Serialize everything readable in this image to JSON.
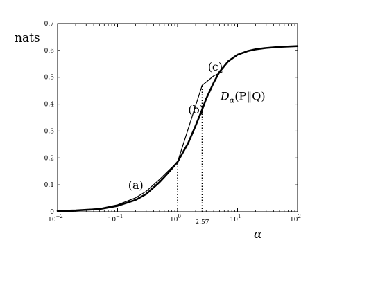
{
  "chart_data": {
    "type": "line",
    "title": "",
    "xlabel": "α",
    "ylabel": "nats",
    "xscale": "log",
    "xlim": [
      0.01,
      100
    ],
    "ylim": [
      0,
      0.7
    ],
    "grid": false,
    "x_tick_labels": [
      {
        "base": "10",
        "exp": "−2",
        "value": 0.01
      },
      {
        "base": "10",
        "exp": "−1",
        "value": 0.1
      },
      {
        "base": "10",
        "exp": "0",
        "value": 1
      },
      {
        "base": "10",
        "exp": "1",
        "value": 10
      },
      {
        "base": "10",
        "exp": "2",
        "value": 100
      }
    ],
    "x_extra_tick": {
      "label": "2.57",
      "value": 2.57
    },
    "y_ticks": [
      "0",
      "0.1",
      "0.2",
      "0.3",
      "0.4",
      "0.5",
      "0.6",
      "0.7"
    ],
    "y_tick_values": [
      0,
      0.1,
      0.2,
      0.3,
      0.4,
      0.5,
      0.6,
      0.7
    ],
    "series": [
      {
        "name": "Dα(P‖Q)",
        "x": [
          0.01,
          0.02,
          0.05,
          0.1,
          0.2,
          0.3,
          0.5,
          0.7,
          1,
          1.5,
          2,
          2.57,
          3,
          4,
          5,
          7,
          10,
          15,
          20,
          30,
          50,
          100
        ],
        "y": [
          0.003,
          0.005,
          0.01,
          0.022,
          0.044,
          0.066,
          0.11,
          0.145,
          0.185,
          0.255,
          0.32,
          0.38,
          0.42,
          0.48,
          0.52,
          0.56,
          0.584,
          0.598,
          0.604,
          0.609,
          0.613,
          0.616
        ]
      },
      {
        "name": "(a)",
        "x": [
          0.01,
          0.02,
          0.05,
          0.1,
          0.2,
          0.3,
          0.5,
          0.7,
          1
        ],
        "y": [
          0.003,
          0.005,
          0.012,
          0.026,
          0.052,
          0.076,
          0.12,
          0.152,
          0.185
        ]
      },
      {
        "name": "(b)",
        "x": [
          1,
          2.57
        ],
        "y": [
          0.185,
          0.47
        ]
      },
      {
        "name": "(c)",
        "x": [
          2.57,
          4,
          5.5
        ],
        "y": [
          0.47,
          0.505,
          0.52
        ]
      }
    ],
    "vertical_dotted": [
      {
        "x": 1,
        "y_top": 0.185
      },
      {
        "x": 2.57,
        "y_top": 0.47
      }
    ],
    "annotations": [
      {
        "text": "(a)",
        "x": 0.15,
        "y": 0.085
      },
      {
        "text": "(b)",
        "x": 1.5,
        "y": 0.365
      },
      {
        "text": "(c)",
        "x": 3.2,
        "y": 0.525
      },
      {
        "text_main": "D",
        "text_sub": "α",
        "text_rest": "(P‖Q)",
        "x": 5.2,
        "y": 0.415
      }
    ]
  }
}
